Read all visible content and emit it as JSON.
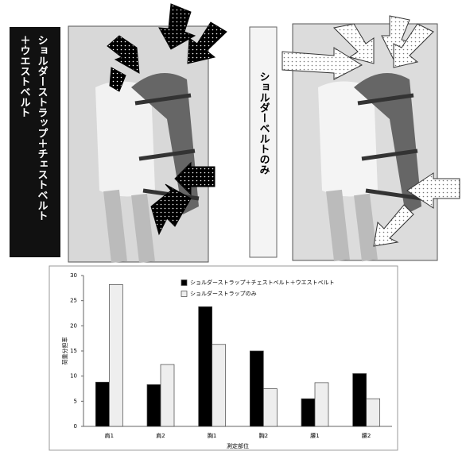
{
  "panels": {
    "left_label": [
      "ショルダーストラップ＋チェストベルト",
      "＋ウエストベルト"
    ],
    "right_label": "ショルダーベルトのみ"
  },
  "chart_data": {
    "type": "bar",
    "y_label": "荷重分担率",
    "x_label": "測定部位",
    "categories": [
      "肩1",
      "肩2",
      "胸1",
      "胸2",
      "腰1",
      "腰2"
    ],
    "series": [
      {
        "name": "ショルダーストラップ＋チェストベルト＋ウエストベルト",
        "color": "#000000",
        "values": [
          8.8,
          8.3,
          23.8,
          15,
          5.5,
          10.5
        ]
      },
      {
        "name": "ショルダーストラップのみ",
        "color": "#eeeeee",
        "values": [
          28.2,
          12.3,
          16.3,
          7.5,
          8.7,
          5.5
        ]
      }
    ],
    "ylim": [
      0,
      30
    ],
    "yticks": [
      0,
      5,
      10,
      15,
      20,
      25,
      30
    ],
    "grid": false,
    "legend": "top-right"
  }
}
